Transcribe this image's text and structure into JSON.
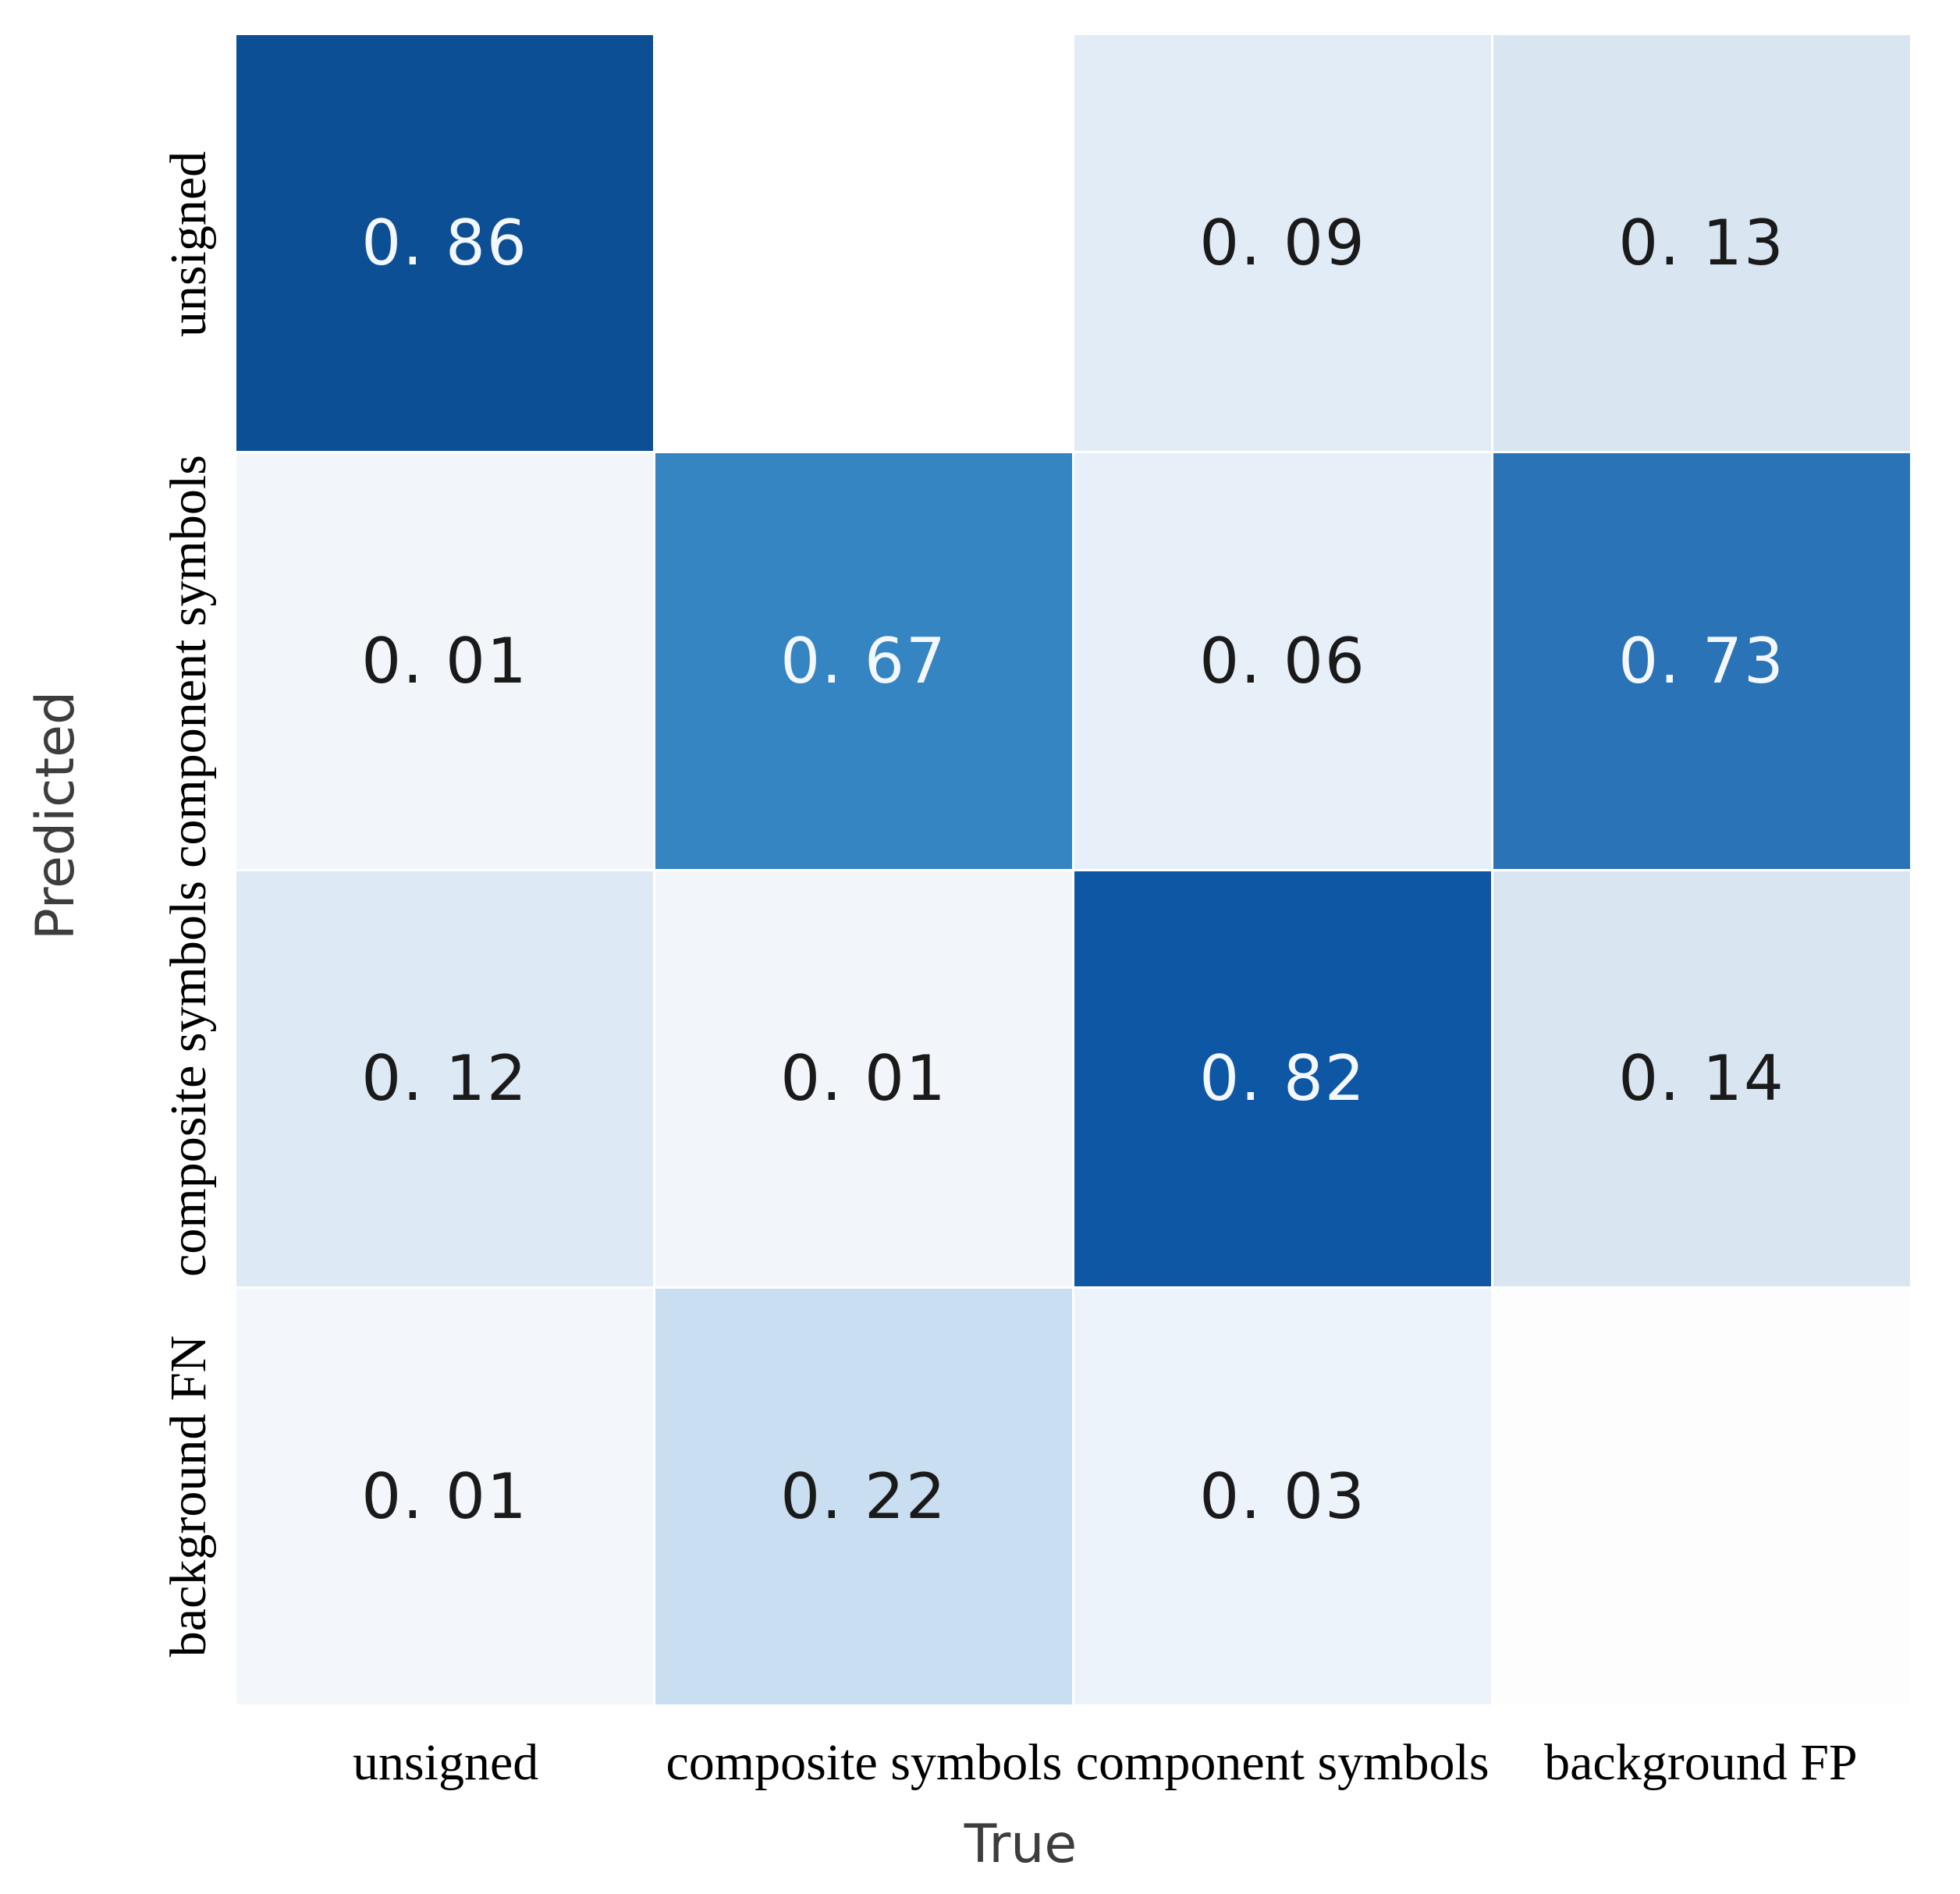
{
  "chart_data": {
    "type": "heatmap",
    "title": "",
    "xlabel": "True",
    "ylabel": "Predicted",
    "colormap": "Blues",
    "legend": "none",
    "x_categories": [
      "unsigned",
      "composite symbols",
      "component symbols",
      "background FP"
    ],
    "y_categories": [
      "unsigned",
      "component symbols",
      "composite symbols",
      "background FN"
    ],
    "matrix": [
      [
        0.86,
        null,
        0.09,
        0.13
      ],
      [
        0.01,
        0.67,
        0.06,
        0.73
      ],
      [
        0.12,
        0.01,
        0.82,
        0.14
      ],
      [
        0.01,
        0.22,
        0.03,
        null
      ]
    ],
    "cell_labels": [
      [
        "0. 86",
        "",
        "0. 09",
        "0. 13"
      ],
      [
        "0. 01",
        "0. 67",
        "0. 06",
        "0. 73"
      ],
      [
        "0. 12",
        "0. 01",
        "0. 82",
        "0. 14"
      ],
      [
        "0. 01",
        "0. 22",
        "0. 03",
        ""
      ]
    ],
    "cell_colors": [
      [
        "#0c4f94",
        "#ffffff",
        "#e2ecf6",
        "#d9e6f2"
      ],
      [
        "#f2f6fb",
        "#3585c2",
        "#e7eff8",
        "#2a73b7"
      ],
      [
        "#dde9f4",
        "#f2f6fb",
        "#0e57a4",
        "#d9e6f2"
      ],
      [
        "#f3f7fb",
        "#c9def0",
        "#edf3fa",
        "#fdfdfe"
      ]
    ],
    "annotation_text_dark": "#1a1a1a",
    "annotation_text_light": "#f5f8fb",
    "value_text_threshold": 0.5
  }
}
